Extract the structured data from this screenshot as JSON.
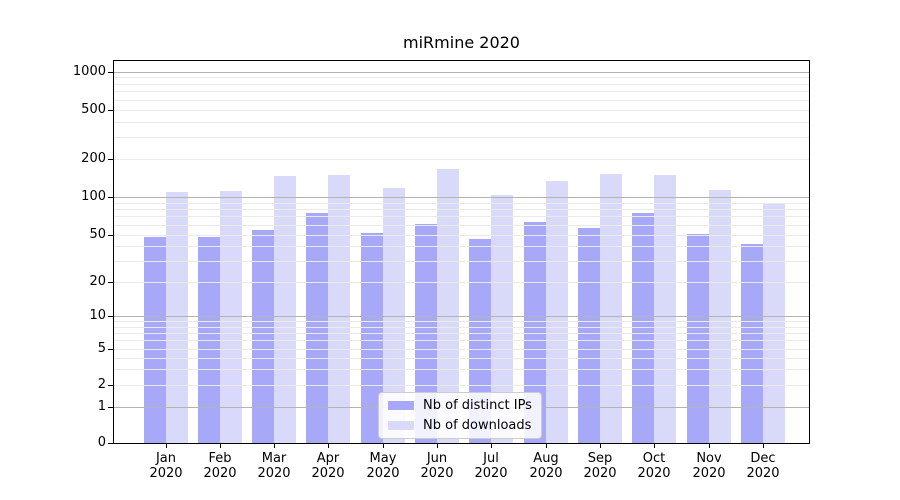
{
  "title": "miRmine 2020",
  "chart_data": {
    "type": "bar",
    "title": "miRmine 2020",
    "categories": [
      "Jan",
      "Feb",
      "Mar",
      "Apr",
      "May",
      "Jun",
      "Jul",
      "Aug",
      "Sep",
      "Oct",
      "Nov",
      "Dec"
    ],
    "year_label": "2020",
    "series": [
      {
        "name": "Nb of distinct IPs",
        "color": "#a8a8f8",
        "values": [
          48,
          48,
          55,
          75,
          52,
          61,
          46,
          63,
          57,
          75,
          51,
          42
        ]
      },
      {
        "name": "Nb of downloads",
        "color": "#d9d9fa",
        "values": [
          110,
          112,
          147,
          149,
          117,
          167,
          103,
          134,
          151,
          149,
          113,
          90
        ]
      }
    ],
    "yticks": [
      0,
      1,
      2,
      5,
      10,
      20,
      50,
      100,
      200,
      500,
      1000
    ],
    "yscale": "symlog",
    "ylim": [
      0,
      1300
    ],
    "grid": true,
    "legend_position": "lower center",
    "legend_title": ""
  },
  "colors": {
    "major_grid": "#b3b3b3",
    "minor_grid": "#eaeaea",
    "spine": "#000000",
    "background": "#ffffff",
    "legend_border": "#cccccc"
  }
}
